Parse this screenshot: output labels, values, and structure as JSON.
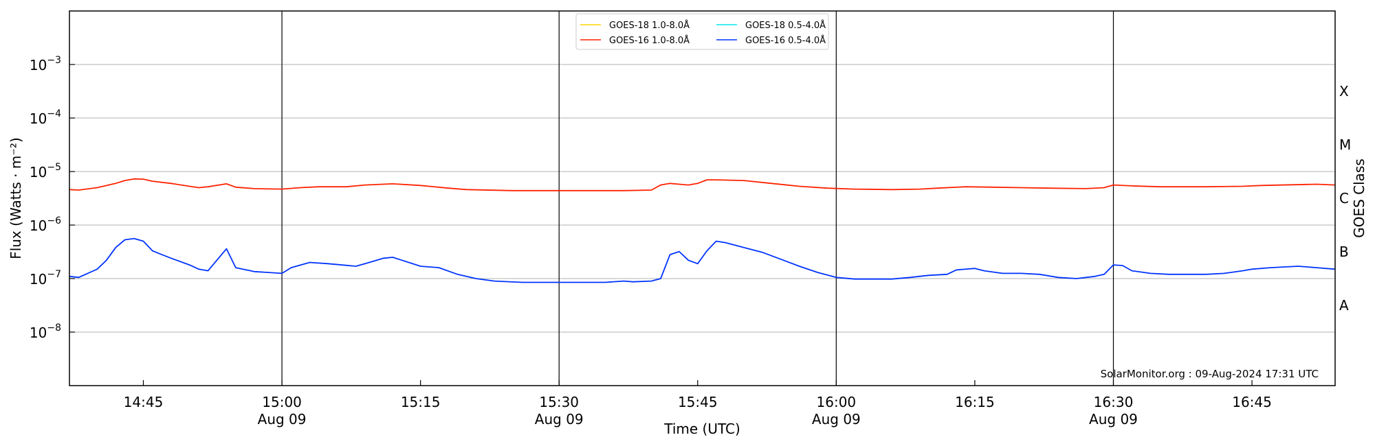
{
  "chart_data": {
    "type": "line",
    "xlabel": "Time (UTC)",
    "ylabel": "Flux (Watts · m⁻²)",
    "y2label": "GOES Class",
    "y_scale": "log",
    "ylim": [
      1e-09,
      0.01
    ],
    "xlim": [
      "14:37",
      "16:54"
    ],
    "x_ticks": [
      {
        "t": "14:45",
        "label": "14:45",
        "sublabel": ""
      },
      {
        "t": "15:00",
        "label": "15:00",
        "sublabel": "Aug 09"
      },
      {
        "t": "15:15",
        "label": "15:15",
        "sublabel": ""
      },
      {
        "t": "15:30",
        "label": "15:30",
        "sublabel": "Aug 09"
      },
      {
        "t": "15:45",
        "label": "15:45",
        "sublabel": ""
      },
      {
        "t": "16:00",
        "label": "16:00",
        "sublabel": "Aug 09"
      },
      {
        "t": "16:15",
        "label": "16:15",
        "sublabel": ""
      },
      {
        "t": "16:30",
        "label": "16:30",
        "sublabel": "Aug 09"
      },
      {
        "t": "16:45",
        "label": "16:45",
        "sublabel": ""
      }
    ],
    "y_ticks": [
      {
        "value": 1e-08,
        "mantissa": "10",
        "exp": "−8"
      },
      {
        "value": 1e-07,
        "mantissa": "10",
        "exp": "−7"
      },
      {
        "value": 1e-06,
        "mantissa": "10",
        "exp": "−6"
      },
      {
        "value": 1e-05,
        "mantissa": "10",
        "exp": "−5"
      },
      {
        "value": 0.0001,
        "mantissa": "10",
        "exp": "−4"
      },
      {
        "value": 0.001,
        "mantissa": "10",
        "exp": "−3"
      }
    ],
    "vlines": [
      "15:00",
      "15:30",
      "16:00",
      "16:30"
    ],
    "goes_classes": [
      {
        "label": "A",
        "value": 3.16e-08
      },
      {
        "label": "B",
        "value": 3.16e-07
      },
      {
        "label": "C",
        "value": 3.16e-06
      },
      {
        "label": "M",
        "value": 3.16e-05
      },
      {
        "label": "X",
        "value": 0.000316
      }
    ],
    "grid": "horizontal",
    "legend_position": "top-center",
    "legend": [
      {
        "name": "GOES-18 1.0-8.0Å",
        "color": "#ffd700"
      },
      {
        "name": "GOES-18 0.5-4.0Å",
        "color": "#00e5ee"
      },
      {
        "name": "GOES-16 1.0-8.0Å",
        "color": "#ff2200"
      },
      {
        "name": "GOES-16 0.5-4.0Å",
        "color": "#0033ff"
      }
    ],
    "credit": "SolarMonitor.org : 09-Aug-2024 17:31 UTC",
    "series": [
      {
        "name": "GOES-16 1.0-8.0Å",
        "color": "#ff2200",
        "points": [
          [
            "14:37",
            4.6e-06
          ],
          [
            "14:38",
            4.5e-06
          ],
          [
            "14:40",
            5e-06
          ],
          [
            "14:42",
            6e-06
          ],
          [
            "14:43",
            6.8e-06
          ],
          [
            "14:44",
            7.3e-06
          ],
          [
            "14:45",
            7.2e-06
          ],
          [
            "14:46",
            6.6e-06
          ],
          [
            "14:48",
            6e-06
          ],
          [
            "14:50",
            5.3e-06
          ],
          [
            "14:51",
            5e-06
          ],
          [
            "14:52",
            5.2e-06
          ],
          [
            "14:54",
            5.9e-06
          ],
          [
            "14:55",
            5.1e-06
          ],
          [
            "14:57",
            4.8e-06
          ],
          [
            "15:00",
            4.7e-06
          ],
          [
            "15:02",
            5e-06
          ],
          [
            "15:04",
            5.2e-06
          ],
          [
            "15:07",
            5.2e-06
          ],
          [
            "15:09",
            5.6e-06
          ],
          [
            "15:12",
            5.9e-06
          ],
          [
            "15:15",
            5.5e-06
          ],
          [
            "15:18",
            4.9e-06
          ],
          [
            "15:20",
            4.6e-06
          ],
          [
            "15:25",
            4.4e-06
          ],
          [
            "15:30",
            4.4e-06
          ],
          [
            "15:34",
            4.4e-06
          ],
          [
            "15:37",
            4.4e-06
          ],
          [
            "15:40",
            4.5e-06
          ],
          [
            "15:41",
            5.6e-06
          ],
          [
            "15:42",
            6e-06
          ],
          [
            "15:43",
            5.8e-06
          ],
          [
            "15:44",
            5.6e-06
          ],
          [
            "15:45",
            6e-06
          ],
          [
            "15:46",
            7e-06
          ],
          [
            "15:47",
            7e-06
          ],
          [
            "15:50",
            6.8e-06
          ],
          [
            "15:53",
            6e-06
          ],
          [
            "15:56",
            5.3e-06
          ],
          [
            "15:59",
            4.9e-06
          ],
          [
            "16:02",
            4.7e-06
          ],
          [
            "16:06",
            4.6e-06
          ],
          [
            "16:09",
            4.7e-06
          ],
          [
            "16:11",
            4.9e-06
          ],
          [
            "16:14",
            5.2e-06
          ],
          [
            "16:17",
            5.1e-06
          ],
          [
            "16:20",
            5e-06
          ],
          [
            "16:23",
            4.9e-06
          ],
          [
            "16:27",
            4.8e-06
          ],
          [
            "16:29",
            5e-06
          ],
          [
            "16:30",
            5.6e-06
          ],
          [
            "16:32",
            5.4e-06
          ],
          [
            "16:35",
            5.2e-06
          ],
          [
            "16:40",
            5.2e-06
          ],
          [
            "16:44",
            5.3e-06
          ],
          [
            "16:46",
            5.5e-06
          ],
          [
            "16:52",
            5.8e-06
          ],
          [
            "16:54",
            5.6e-06
          ]
        ]
      },
      {
        "name": "GOES-16 0.5-4.0Å",
        "color": "#0033ff",
        "points": [
          [
            "14:37",
            1.1e-07
          ],
          [
            "14:38",
            1.05e-07
          ],
          [
            "14:40",
            1.5e-07
          ],
          [
            "14:41",
            2.2e-07
          ],
          [
            "14:42",
            3.8e-07
          ],
          [
            "14:43",
            5.3e-07
          ],
          [
            "14:44",
            5.6e-07
          ],
          [
            "14:45",
            5e-07
          ],
          [
            "14:46",
            3.3e-07
          ],
          [
            "14:47",
            2.8e-07
          ],
          [
            "14:48",
            2.4e-07
          ],
          [
            "14:50",
            1.8e-07
          ],
          [
            "14:51",
            1.5e-07
          ],
          [
            "14:52",
            1.4e-07
          ],
          [
            "14:54",
            3.6e-07
          ],
          [
            "14:55",
            1.6e-07
          ],
          [
            "14:57",
            1.35e-07
          ],
          [
            "15:00",
            1.25e-07
          ],
          [
            "15:01",
            1.6e-07
          ],
          [
            "15:03",
            2e-07
          ],
          [
            "15:05",
            1.9e-07
          ],
          [
            "15:08",
            1.7e-07
          ],
          [
            "15:09",
            1.9e-07
          ],
          [
            "15:11",
            2.4e-07
          ],
          [
            "15:12",
            2.5e-07
          ],
          [
            "15:13",
            2.2e-07
          ],
          [
            "15:15",
            1.7e-07
          ],
          [
            "15:17",
            1.6e-07
          ],
          [
            "15:19",
            1.2e-07
          ],
          [
            "15:21",
            1e-07
          ],
          [
            "15:23",
            9e-08
          ],
          [
            "15:26",
            8.5e-08
          ],
          [
            "15:30",
            8.5e-08
          ],
          [
            "15:35",
            8.5e-08
          ],
          [
            "15:37",
            9e-08
          ],
          [
            "15:38",
            8.7e-08
          ],
          [
            "15:40",
            9e-08
          ],
          [
            "15:41",
            1e-07
          ],
          [
            "15:42",
            2.8e-07
          ],
          [
            "15:43",
            3.2e-07
          ],
          [
            "15:44",
            2.2e-07
          ],
          [
            "15:45",
            1.9e-07
          ],
          [
            "15:46",
            3.3e-07
          ],
          [
            "15:47",
            5e-07
          ],
          [
            "15:48",
            4.7e-07
          ],
          [
            "15:50",
            3.8e-07
          ],
          [
            "15:52",
            3.1e-07
          ],
          [
            "15:54",
            2.3e-07
          ],
          [
            "15:56",
            1.7e-07
          ],
          [
            "15:58",
            1.3e-07
          ],
          [
            "16:00",
            1.05e-07
          ],
          [
            "16:02",
            9.8e-08
          ],
          [
            "16:06",
            9.8e-08
          ],
          [
            "16:08",
            1.05e-07
          ],
          [
            "16:10",
            1.15e-07
          ],
          [
            "16:12",
            1.2e-07
          ],
          [
            "16:13",
            1.45e-07
          ],
          [
            "16:15",
            1.55e-07
          ],
          [
            "16:16",
            1.4e-07
          ],
          [
            "16:18",
            1.25e-07
          ],
          [
            "16:20",
            1.25e-07
          ],
          [
            "16:22",
            1.2e-07
          ],
          [
            "16:24",
            1.05e-07
          ],
          [
            "16:26",
            1e-07
          ],
          [
            "16:28",
            1.1e-07
          ],
          [
            "16:29",
            1.2e-07
          ],
          [
            "16:30",
            1.8e-07
          ],
          [
            "16:31",
            1.75e-07
          ],
          [
            "16:32",
            1.4e-07
          ],
          [
            "16:34",
            1.25e-07
          ],
          [
            "16:36",
            1.2e-07
          ],
          [
            "16:40",
            1.2e-07
          ],
          [
            "16:42",
            1.25e-07
          ],
          [
            "16:44",
            1.4e-07
          ],
          [
            "16:45",
            1.5e-07
          ],
          [
            "16:47",
            1.6e-07
          ],
          [
            "16:50",
            1.7e-07
          ],
          [
            "16:52",
            1.6e-07
          ],
          [
            "16:54",
            1.5e-07
          ]
        ]
      }
    ]
  }
}
